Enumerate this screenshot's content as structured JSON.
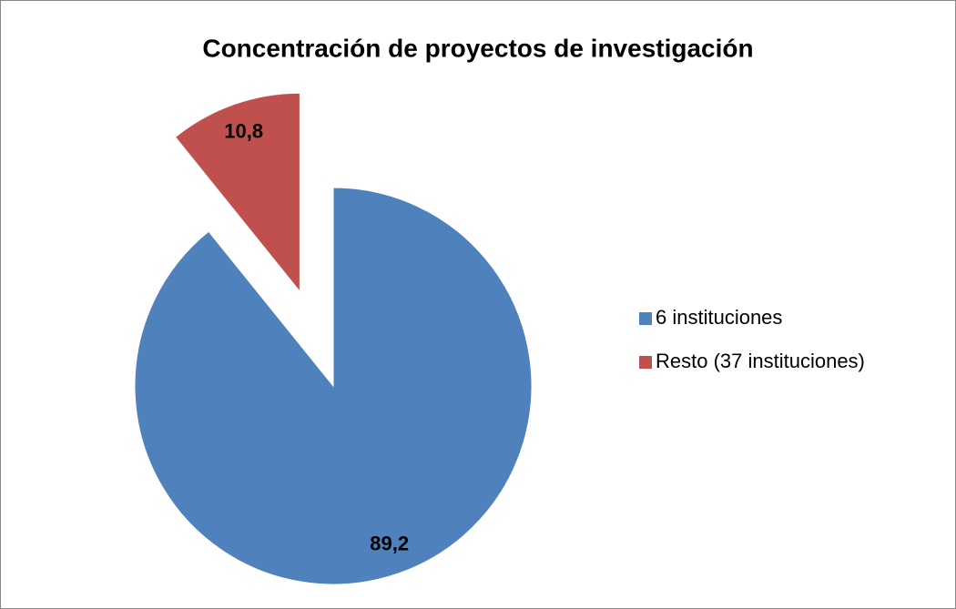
{
  "chart_data": {
    "type": "pie",
    "title": "Concentración de proyectos de investigación",
    "categories": [
      "6 instituciones",
      "Resto (37 instituciones)"
    ],
    "values": [
      89.2,
      10.8
    ],
    "value_labels": [
      "89,2",
      "10,8"
    ],
    "colors": [
      "#4f81bd",
      "#c0504d"
    ],
    "exploded": [
      false,
      true
    ],
    "legend": "right"
  }
}
